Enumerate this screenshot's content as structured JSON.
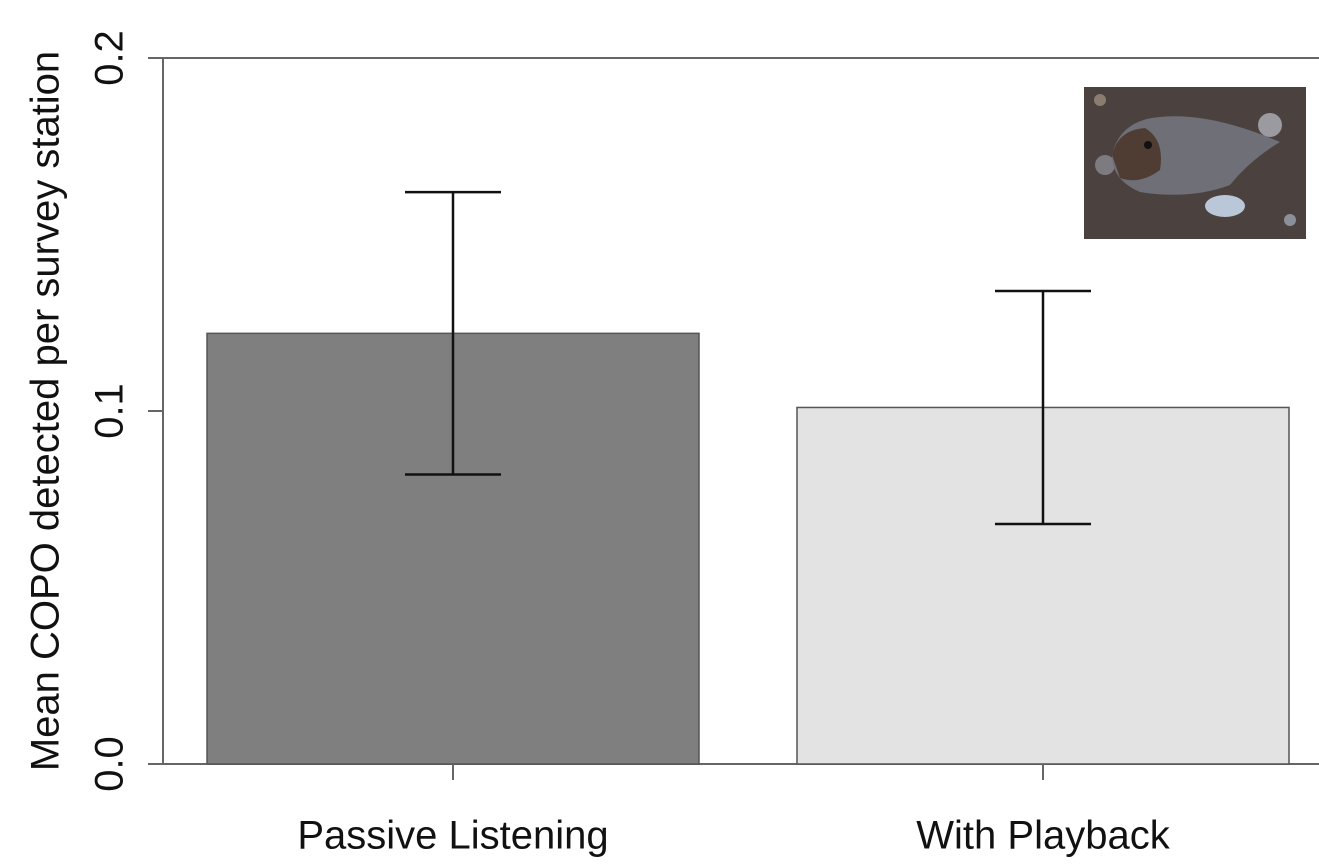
{
  "chart_data": {
    "type": "bar",
    "y_label": "Mean COPO detected per survey station",
    "categories": [
      "Passive Listening",
      "With Playback"
    ],
    "values": [
      0.122,
      0.101
    ],
    "errors": [
      0.04,
      0.033
    ],
    "colors": [
      "#7f7f7f",
      "#e3e3e3"
    ],
    "ylim": [
      0,
      0.2
    ],
    "yticks": [
      {
        "value": 0,
        "label": "0.0"
      },
      0.1,
      0.2
    ]
  }
}
